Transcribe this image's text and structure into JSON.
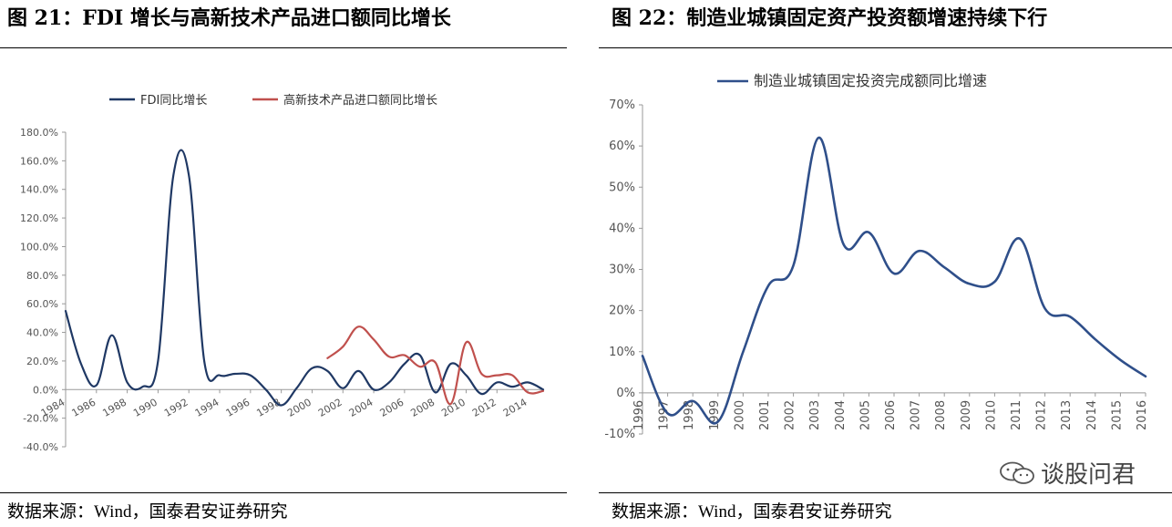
{
  "left": {
    "title": "图 21：FDI 增长与高新技术产品进口额同比增长",
    "source": "数据来源：Wind，国泰君安证券研究"
  },
  "right": {
    "title": "图 22：制造业城镇固定资产投资额增速持续下行",
    "source": "数据来源：Wind，国泰君安证券研究"
  },
  "watermark": {
    "text": "谈股问君",
    "icon": "wechat-icon"
  },
  "chart_data": [
    {
      "type": "line",
      "title": "",
      "legend_position": "top",
      "grid": false,
      "ylim": [
        -40,
        180
      ],
      "yticks": [
        -40,
        -20,
        0,
        20,
        40,
        60,
        80,
        100,
        120,
        140,
        160,
        180
      ],
      "ytick_labels": [
        "-40.0%",
        "-20.0%",
        "0.0%",
        "20.0%",
        "40.0%",
        "60.0%",
        "80.0%",
        "100.0%",
        "120.0%",
        "140.0%",
        "160.0%",
        "180.0%"
      ],
      "xlim": [
        1984,
        2015
      ],
      "xticks": [
        1984,
        1986,
        1988,
        1990,
        1992,
        1994,
        1996,
        1998,
        2000,
        2002,
        2004,
        2006,
        2008,
        2010,
        2012,
        2014
      ],
      "xtick_labels": [
        "1984",
        "1986",
        "1988",
        "1990",
        "1992",
        "1994",
        "1996",
        "1998",
        "2000",
        "2002",
        "2004",
        "2006",
        "2008",
        "2010",
        "2012",
        "2014"
      ],
      "series": [
        {
          "name": "FDI同比增长",
          "color": "#1f3864",
          "x": [
            1984,
            1985,
            1986,
            1987,
            1988,
            1989,
            1990,
            1991,
            1992,
            1993,
            1994,
            1995,
            1996,
            1997,
            1998,
            1999,
            2000,
            2001,
            2002,
            2003,
            2004,
            2005,
            2006,
            2007,
            2008,
            2009,
            2010,
            2011,
            2012,
            2013,
            2014,
            2015
          ],
          "y": [
            55,
            18,
            3,
            38,
            5,
            2,
            20,
            150,
            150,
            20,
            10,
            11,
            10,
            0,
            -11,
            1,
            15,
            13,
            1,
            13,
            0,
            5,
            18,
            24,
            -2,
            18,
            10,
            -3,
            5,
            2,
            5,
            0
          ]
        },
        {
          "name": "高新技术产品进口额同比增长",
          "color": "#c0504d",
          "x": [
            2001,
            2002,
            2003,
            2004,
            2005,
            2006,
            2007,
            2008,
            2009,
            2010,
            2011,
            2012,
            2013,
            2014,
            2015
          ],
          "y": [
            22,
            30,
            44,
            35,
            23,
            24,
            16,
            19,
            -10,
            33,
            11,
            10,
            10,
            -2,
            -1
          ]
        }
      ]
    },
    {
      "type": "line",
      "title": "",
      "legend_position": "top",
      "grid": false,
      "ylim": [
        -10,
        70
      ],
      "yticks": [
        -10,
        0,
        10,
        20,
        30,
        40,
        50,
        60,
        70
      ],
      "ytick_labels": [
        "-10%",
        "0%",
        "10%",
        "20%",
        "30%",
        "40%",
        "50%",
        "60%",
        "70%"
      ],
      "xlim": [
        1996,
        2016
      ],
      "xticks": [
        1996,
        1997,
        1998,
        1999,
        2000,
        2001,
        2002,
        2003,
        2004,
        2005,
        2006,
        2007,
        2008,
        2009,
        2010,
        2011,
        2012,
        2013,
        2014,
        2015,
        2016
      ],
      "xtick_labels": [
        "1996",
        "1997",
        "1998",
        "1999",
        "2000",
        "2001",
        "2002",
        "2003",
        "2004",
        "2005",
        "2006",
        "2007",
        "2008",
        "2009",
        "2010",
        "2011",
        "2012",
        "2013",
        "2014",
        "2015",
        "2016"
      ],
      "series": [
        {
          "name": "制造业城镇固定投资完成额同比增速",
          "color": "#2f4f8a",
          "x": [
            1996,
            1997,
            1998,
            1999,
            2000,
            2001,
            2002,
            2003,
            2004,
            2005,
            2006,
            2007,
            2008,
            2009,
            2010,
            2011,
            2012,
            2013,
            2014,
            2015,
            2016
          ],
          "y": [
            9,
            -5,
            -2,
            -7,
            10,
            26,
            31,
            62,
            36,
            39,
            29,
            34.5,
            30.5,
            26.5,
            27,
            37.5,
            20.5,
            18.5,
            13,
            8,
            4
          ]
        }
      ]
    }
  ]
}
